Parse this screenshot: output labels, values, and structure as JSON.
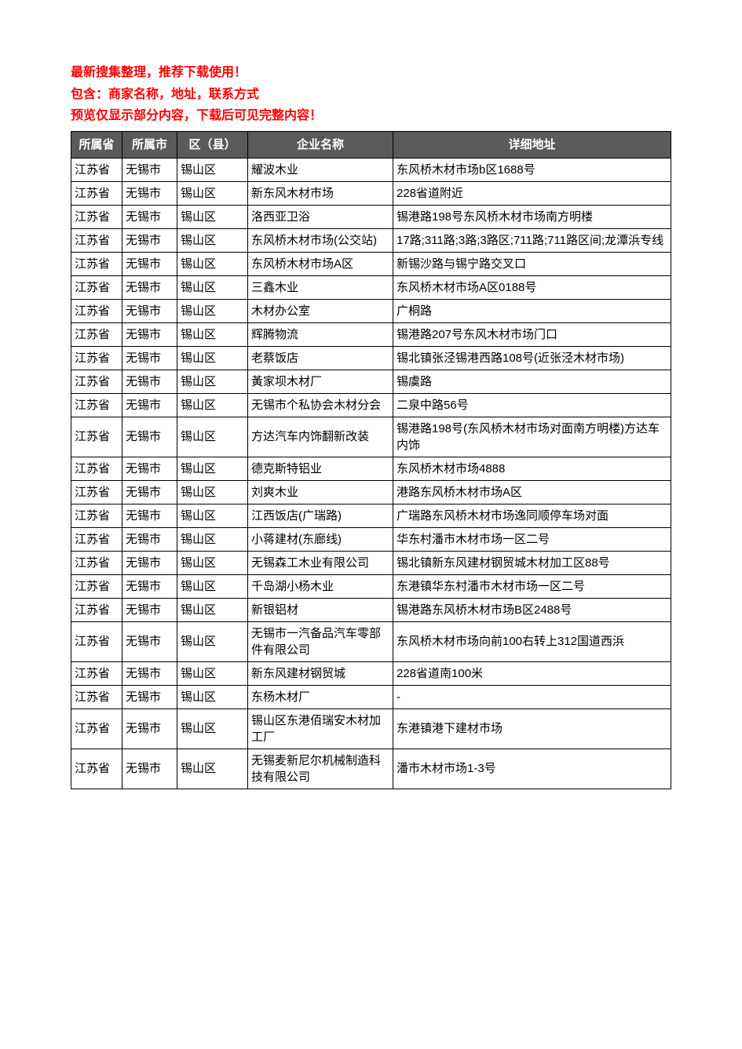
{
  "header": {
    "line1": "最新搜集整理，推荐下载使用！",
    "line2": "包含：商家名称，地址，联系方式",
    "line3": "预览仅显示部分内容，下载后可见完整内容！"
  },
  "table": {
    "columns": [
      "所属省",
      "所属市",
      "区（县）",
      "企业名称",
      "详细地址"
    ],
    "rows": [
      [
        "江苏省",
        "无锡市",
        "锡山区",
        "耀波木业",
        "东风桥木材市场b区1688号"
      ],
      [
        "江苏省",
        "无锡市",
        "锡山区",
        "新东风木材市场",
        "228省道附近"
      ],
      [
        "江苏省",
        "无锡市",
        "锡山区",
        "洛西亚卫浴",
        "锡港路198号东风桥木材市场南方明楼"
      ],
      [
        "江苏省",
        "无锡市",
        "锡山区",
        "东风桥木材市场(公交站)",
        "17路;311路;3路;3路区;711路;711路区间;龙潭浜专线"
      ],
      [
        "江苏省",
        "无锡市",
        "锡山区",
        "东风桥木材市场A区",
        "新锡沙路与锡宁路交叉口"
      ],
      [
        "江苏省",
        "无锡市",
        "锡山区",
        "三鑫木业",
        "东风桥木材市场A区0188号"
      ],
      [
        "江苏省",
        "无锡市",
        "锡山区",
        "木材办公室",
        "广桐路"
      ],
      [
        "江苏省",
        "无锡市",
        "锡山区",
        "辉腾物流",
        "锡港路207号东风木材市场门口"
      ],
      [
        "江苏省",
        "无锡市",
        "锡山区",
        "老蔡饭店",
        "锡北镇张泾锡港西路108号(近张泾木材市场)"
      ],
      [
        "江苏省",
        "无锡市",
        "锡山区",
        "黃家坝木材厂",
        "锡虞路"
      ],
      [
        "江苏省",
        "无锡市",
        "锡山区",
        "无锡市个私协会木材分会",
        "二泉中路56号"
      ],
      [
        "江苏省",
        "无锡市",
        "锡山区",
        "方达汽车内饰翻新改装",
        "锡港路198号(东风桥木材市场对面南方明楼)方达车内饰"
      ],
      [
        "江苏省",
        "无锡市",
        "锡山区",
        "德克斯特铝业",
        "东风桥木材市场4888"
      ],
      [
        "江苏省",
        "无锡市",
        "锡山区",
        "刘爽木业",
        "港路东风桥木材市场A区"
      ],
      [
        "江苏省",
        "无锡市",
        "锡山区",
        "江西饭店(广瑞路)",
        "广瑞路东风桥木材市场逸同顺停车场对面"
      ],
      [
        "江苏省",
        "无锡市",
        "锡山区",
        "小蒋建材(东廊线)",
        "华东村潘市木材市场一区二号"
      ],
      [
        "江苏省",
        "无锡市",
        "锡山区",
        "无锡森工木业有限公司",
        "锡北镇新东风建材钢贸城木材加工区88号"
      ],
      [
        "江苏省",
        "无锡市",
        "锡山区",
        "千岛湖小杨木业",
        "东港镇华东村潘市木材市场一区二号"
      ],
      [
        "江苏省",
        "无锡市",
        "锡山区",
        "新银铝材",
        "锡港路东风桥木材市场B区2488号"
      ],
      [
        "江苏省",
        "无锡市",
        "锡山区",
        "无锡市一汽备品汽车零部件有限公司",
        "东风桥木材市场向前100右转上312国道西浜"
      ],
      [
        "江苏省",
        "无锡市",
        "锡山区",
        "新东风建材钢贸城",
        "228省道南100米"
      ],
      [
        "江苏省",
        "无锡市",
        "锡山区",
        "东杨木材厂",
        "-"
      ],
      [
        "江苏省",
        "无锡市",
        "锡山区",
        "锡山区东港佰瑞安木材加工厂",
        "东港镇港下建材市场"
      ],
      [
        "江苏省",
        "无锡市",
        "锡山区",
        "无锡麦新尼尔机械制造科技有限公司",
        "潘市木材市场1-3号"
      ]
    ]
  }
}
